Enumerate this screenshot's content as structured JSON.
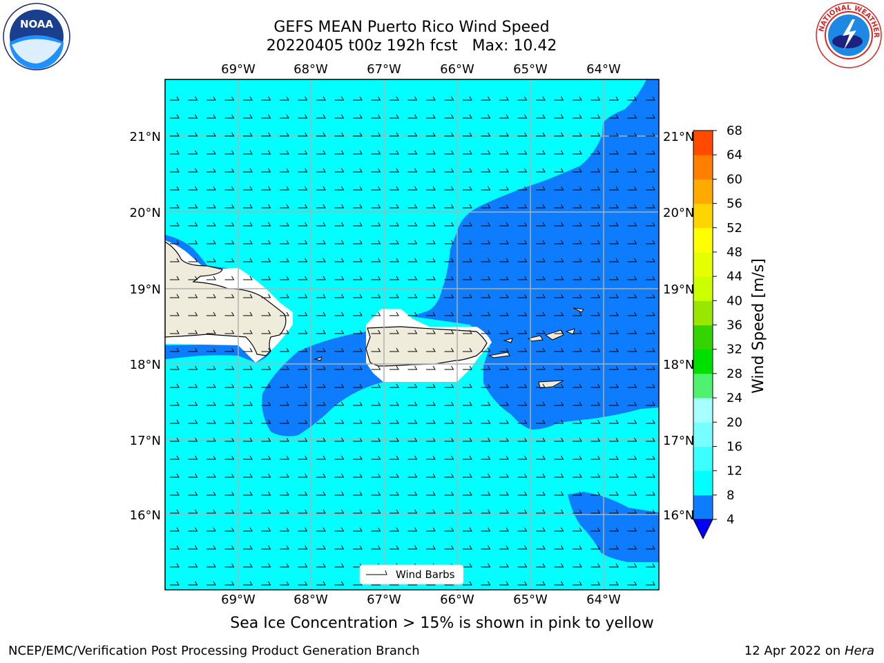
{
  "header": {
    "title_line1": "GEFS MEAN Puerto Rico Wind Speed",
    "title_line2": "20220405 t00z 192h fcst   Max: 10.42"
  },
  "axes": {
    "lon_labels": [
      "69°W",
      "68°W",
      "67°W",
      "66°W",
      "65°W",
      "64°W"
    ],
    "lat_labels": [
      "21°N",
      "20°N",
      "19°N",
      "18°N",
      "17°N",
      "16°N"
    ]
  },
  "legend": {
    "label": "Wind Barbs"
  },
  "colorbar": {
    "label": "Wind Speed [m/s]",
    "ticks": [
      "4",
      "8",
      "12",
      "16",
      "20",
      "24",
      "28",
      "32",
      "36",
      "40",
      "44",
      "48",
      "52",
      "56",
      "60",
      "64",
      "68"
    ],
    "colors": [
      "#0d7cff",
      "#00ffff",
      "#3cffff",
      "#77ffff",
      "#a8ffff",
      "#50f070",
      "#00e000",
      "#33d400",
      "#99e600",
      "#ccff00",
      "#e6ff00",
      "#ffff00",
      "#ffd500",
      "#ffaa00",
      "#ff7f00",
      "#ff4a00",
      "#ff1500"
    ],
    "extend_color": "#0000ff"
  },
  "colors": {
    "ocean_light": "#00ffff",
    "ocean_blue": "#0d7cff",
    "land": "#efecdc",
    "gridline": "#b0b0b0"
  },
  "icons": {
    "left_logo": "noaa-logo",
    "right_logo": "nws-logo"
  },
  "note": "Sea Ice Concentration > 15% is shown in pink to yellow",
  "footer": {
    "credit": "NCEP/EMC/Verification Post Processing Product Generation Branch",
    "date": "12 Apr 2022 on",
    "machine": "Hera"
  }
}
